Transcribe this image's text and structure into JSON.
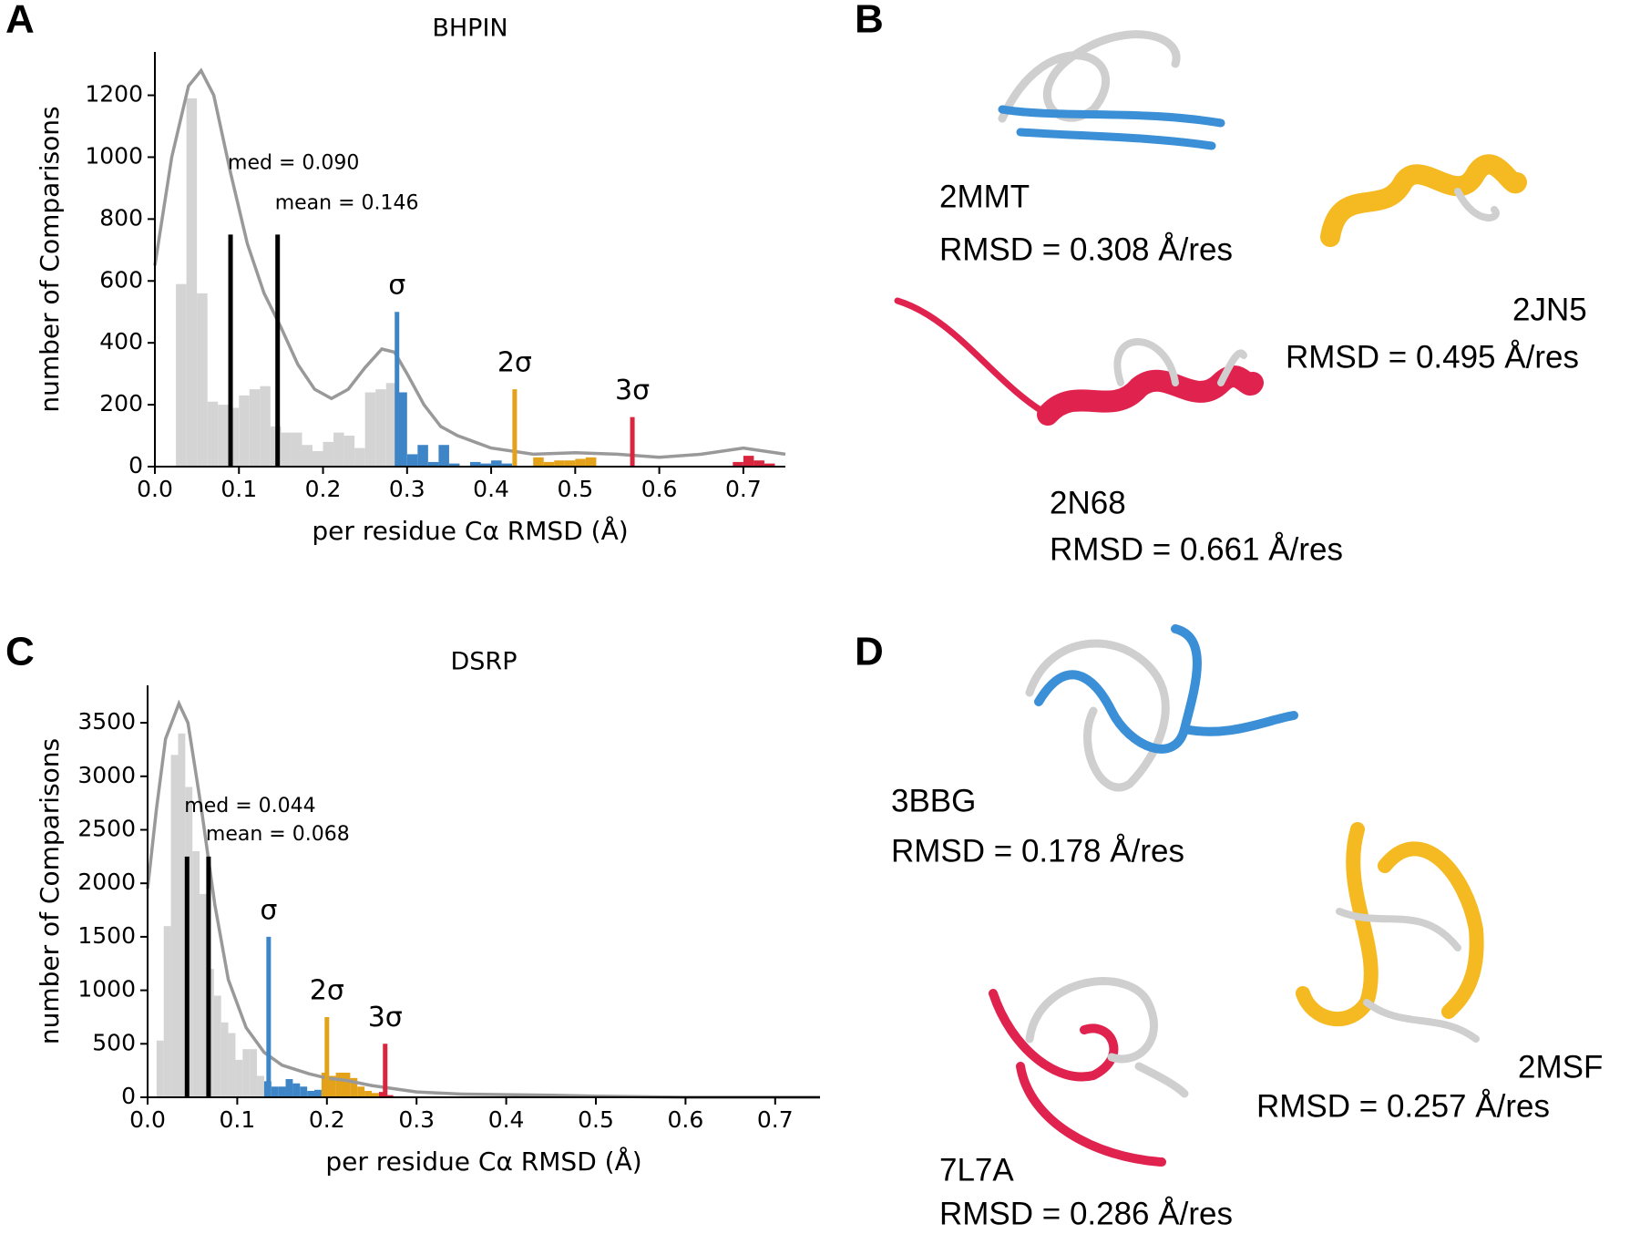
{
  "panel_labels": [
    "A",
    "B",
    "C",
    "D"
  ],
  "chart_data": [
    {
      "type": "histogram",
      "title": "BHPIN",
      "xlabel": "per residue Cα RMSD (Å)",
      "ylabel": "number of Comparisons",
      "xlim": [
        0,
        0.75
      ],
      "ylim": [
        0,
        1340
      ],
      "xticks": [
        {
          "value": 0,
          "label": "0.0"
        },
        0.1,
        0.2,
        0.3,
        0.4,
        0.5,
        0.6,
        0.7
      ],
      "yticks": [
        0,
        200,
        400,
        600,
        800,
        1000,
        1200
      ],
      "segments": [
        {
          "color": "#d4d4d4",
          "bins": [
            0.025,
            0.0375,
            0.05,
            0.0625,
            0.075,
            0.0875,
            0.1,
            0.1125,
            0.125,
            0.1375,
            0.15,
            0.1625,
            0.175,
            0.1875,
            0.2,
            0.2125,
            0.225,
            0.2375,
            0.25,
            0.2625,
            0.275,
            0.2875
          ],
          "values": [
            590,
            1190,
            560,
            210,
            200,
            190,
            230,
            250,
            260,
            130,
            110,
            110,
            70,
            50,
            80,
            110,
            100,
            60,
            240,
            250,
            270
          ]
        },
        {
          "color": "#3d85c6",
          "bins": [
            0.2875,
            0.3,
            0.3125,
            0.325,
            0.3375,
            0.35,
            0.3625,
            0.375,
            0.3875,
            0.4,
            0.4125,
            0.425
          ],
          "values": [
            240,
            40,
            70,
            15,
            70,
            10,
            0,
            15,
            10,
            20,
            10
          ]
        },
        {
          "color": "#e3a21a",
          "bins": [
            0.45,
            0.4625,
            0.475,
            0.4875,
            0.5,
            0.5125,
            0.525
          ],
          "values": [
            30,
            15,
            20,
            20,
            25,
            30
          ]
        },
        {
          "color": "#d7263d",
          "bins": [
            0.6875,
            0.7,
            0.7125,
            0.725,
            0.7375
          ],
          "values": [
            15,
            35,
            20,
            10
          ]
        }
      ],
      "curve": {
        "color": "#999999",
        "x": [
          0,
          0.02,
          0.04,
          0.055,
          0.07,
          0.09,
          0.11,
          0.13,
          0.15,
          0.17,
          0.19,
          0.21,
          0.23,
          0.25,
          0.27,
          0.285,
          0.3,
          0.32,
          0.34,
          0.36,
          0.38,
          0.4,
          0.45,
          0.5,
          0.55,
          0.6,
          0.65,
          0.7,
          0.75
        ],
        "y": [
          650,
          1000,
          1230,
          1280,
          1200,
          950,
          720,
          560,
          450,
          330,
          250,
          220,
          250,
          320,
          380,
          370,
          300,
          200,
          130,
          100,
          80,
          60,
          40,
          45,
          40,
          30,
          40,
          60,
          40
        ]
      },
      "markers": [
        {
          "x": 0.09,
          "height": 750,
          "color": "#000000",
          "label": "med = 0.090"
        },
        {
          "x": 0.146,
          "height": 750,
          "color": "#000000",
          "label": "mean = 0.146"
        },
        {
          "x": 0.288,
          "height": 500,
          "color": "#3d85c6",
          "label": "σ"
        },
        {
          "x": 0.428,
          "height": 250,
          "color": "#e3a21a",
          "label": "2σ"
        },
        {
          "x": 0.568,
          "height": 160,
          "color": "#d7263d",
          "label": "3σ"
        }
      ]
    },
    {
      "type": "histogram",
      "title": "DSRP",
      "xlabel": "per residue Cα RMSD (Å)",
      "ylabel": "number of Comparisons",
      "xlim": [
        0,
        0.75
      ],
      "ylim": [
        0,
        3850
      ],
      "xticks": [
        {
          "value": 0,
          "label": "0.0"
        },
        0.1,
        0.2,
        0.3,
        0.4,
        0.5,
        0.6,
        0.7
      ],
      "yticks": [
        0,
        500,
        1000,
        1500,
        2000,
        2500,
        3000,
        3500
      ],
      "segments": [
        {
          "color": "#d4d4d4",
          "bins": [
            0.01,
            0.018,
            0.026,
            0.034,
            0.042,
            0.05,
            0.058,
            0.066,
            0.074,
            0.082,
            0.09,
            0.098,
            0.106,
            0.114,
            0.122,
            0.13
          ],
          "values": [
            530,
            1600,
            3200,
            3400,
            2900,
            2300,
            1900,
            1200,
            950,
            700,
            600,
            350,
            450,
            450,
            200
          ]
        },
        {
          "color": "#3d85c6",
          "bins": [
            0.13,
            0.138,
            0.146,
            0.154,
            0.162,
            0.17,
            0.178,
            0.186,
            0.194
          ],
          "values": [
            150,
            100,
            100,
            170,
            130,
            100,
            60,
            70
          ]
        },
        {
          "color": "#e3a21a",
          "bins": [
            0.194,
            0.202,
            0.21,
            0.218,
            0.226,
            0.234,
            0.242,
            0.25,
            0.258
          ],
          "values": [
            230,
            200,
            230,
            230,
            180,
            100,
            60,
            40
          ]
        },
        {
          "color": "#d7263d",
          "bins": [
            0.258,
            0.266,
            0.274
          ],
          "values": [
            50,
            20
          ]
        }
      ],
      "curve": {
        "color": "#999999",
        "x": [
          0,
          0.01,
          0.02,
          0.035,
          0.045,
          0.06,
          0.075,
          0.09,
          0.11,
          0.13,
          0.15,
          0.18,
          0.2,
          0.22,
          0.25,
          0.3,
          0.35,
          0.4,
          0.45,
          0.5,
          0.6,
          0.75
        ],
        "y": [
          1950,
          2700,
          3350,
          3680,
          3500,
          2700,
          1800,
          1100,
          650,
          420,
          300,
          220,
          180,
          160,
          110,
          50,
          30,
          25,
          20,
          10,
          0,
          0
        ]
      },
      "markers": [
        {
          "x": 0.044,
          "height": 2250,
          "color": "#000000",
          "label": "med = 0.044"
        },
        {
          "x": 0.068,
          "height": 2250,
          "color": "#000000",
          "label": "mean = 0.068"
        },
        {
          "x": 0.135,
          "height": 1500,
          "color": "#3d85c6",
          "label": "σ"
        },
        {
          "x": 0.2,
          "height": 750,
          "color": "#e3a21a",
          "label": "2σ"
        },
        {
          "x": 0.265,
          "height": 500,
          "color": "#d7263d",
          "label": "3σ"
        }
      ]
    }
  ],
  "structures": [
    {
      "id": "2MMT",
      "rmsd": "RMSD =  0.308 Å/res"
    },
    {
      "id": "2JN5",
      "rmsd": "RMSD =  0.495 Å/res"
    },
    {
      "id": "2N68",
      "rmsd": "RMSD =  0.661 Å/res"
    },
    {
      "id": "3BBG",
      "rmsd": "RMSD =  0.178 Å/res"
    },
    {
      "id": "2MSF",
      "rmsd": "RMSD =  0.257 Å/res"
    },
    {
      "id": "7L7A",
      "rmsd": "RMSD =  0.286 Å/res"
    }
  ]
}
